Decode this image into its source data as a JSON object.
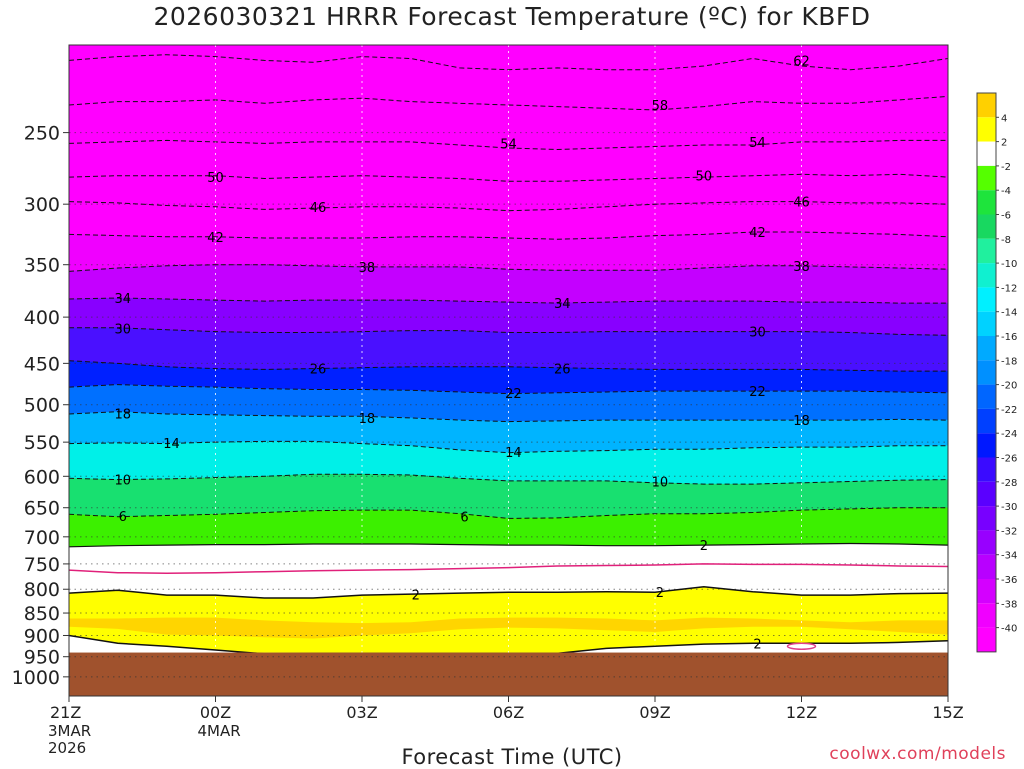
{
  "title": "2026030321 HRRR Forecast Temperature (ºC) for KBFD",
  "credit": "coolwx.com/models",
  "chart_data": {
    "type": "heatmap",
    "title": "2026030321 HRRR Forecast Temperature (ºC) for KBFD",
    "xlabel": "Forecast Time (UTC)",
    "ylabel": "",
    "units": "ºC",
    "x_ticks": [
      {
        "hour": 0,
        "label": "21Z",
        "sub": [
          "3MAR",
          "2026"
        ]
      },
      {
        "hour": 3,
        "label": "00Z",
        "sub": [
          "4MAR"
        ]
      },
      {
        "hour": 6,
        "label": "03Z",
        "sub": []
      },
      {
        "hour": 9,
        "label": "06Z",
        "sub": []
      },
      {
        "hour": 12,
        "label": "09Z",
        "sub": []
      },
      {
        "hour": 15,
        "label": "12Z",
        "sub": []
      },
      {
        "hour": 18,
        "label": "15Z",
        "sub": []
      }
    ],
    "xlim": [
      0,
      18
    ],
    "y_axis": "pressure (hPa), log scale, inverted",
    "ylim": [
      1050,
      200
    ],
    "y_ticks": [
      250,
      300,
      350,
      400,
      450,
      500,
      550,
      600,
      650,
      700,
      750,
      800,
      850,
      900,
      950,
      1000
    ],
    "surface_pressure": 940,
    "surface_color": "#a0522d",
    "colorbar": {
      "levels": [
        4,
        2,
        -2,
        -4,
        -6,
        -8,
        -10,
        -12,
        -14,
        -16,
        -18,
        -20,
        -22,
        -24,
        -26,
        -28,
        -30,
        -32,
        -34,
        -36,
        -38,
        -40
      ],
      "colors": [
        "#ffd000",
        "#ffff00",
        "#ffffff",
        "#55ff00",
        "#1ee43c",
        "#18d860",
        "#20f09e",
        "#10f0d0",
        "#00f0ff",
        "#00d2ff",
        "#00aaff",
        "#0090ff",
        "#0066ff",
        "#0040ff",
        "#0018ff",
        "#3a0bff",
        "#5a00ff",
        "#7800ff",
        "#9800ff",
        "#b800ff",
        "#d400ff",
        "#f000ff",
        "#ff00ff"
      ]
    },
    "contours": [
      {
        "value": "62",
        "p": [
          208,
          206,
          205,
          206,
          208,
          209,
          206,
          207,
          212,
          213,
          212,
          213,
          213,
          211,
          207,
          211,
          213,
          211,
          207
        ]
      },
      {
        "value": "58",
        "p": [
          233,
          231,
          231,
          230,
          232,
          230,
          229,
          231,
          232,
          233,
          234,
          235,
          236,
          234,
          231,
          232,
          232,
          230,
          228
        ]
      },
      {
        "value": "54",
        "p": [
          257,
          256,
          255,
          256,
          257,
          256,
          256,
          256,
          258,
          260,
          261,
          260,
          259,
          258,
          258,
          256,
          256,
          255,
          255
        ]
      },
      {
        "value": "50",
        "p": [
          280,
          279,
          279,
          279,
          281,
          280,
          279,
          280,
          281,
          283,
          283,
          282,
          281,
          280,
          279,
          278,
          279,
          278,
          280
        ]
      },
      {
        "value": "46",
        "p": [
          298,
          299,
          301,
          302,
          304,
          303,
          302,
          302,
          303,
          305,
          304,
          302,
          300,
          299,
          298,
          298,
          299,
          299,
          300
        ]
      },
      {
        "value": "42",
        "p": [
          324,
          325,
          326,
          326,
          327,
          327,
          327,
          326,
          326,
          327,
          328,
          327,
          325,
          324,
          322,
          322,
          323,
          324,
          326
        ]
      },
      {
        "value": "38",
        "p": [
          356,
          353,
          351,
          350,
          350,
          351,
          352,
          352,
          352,
          354,
          355,
          355,
          355,
          353,
          351,
          351,
          352,
          353,
          354
        ]
      },
      {
        "value": "34",
        "p": [
          382,
          381,
          382,
          383,
          384,
          383,
          383,
          383,
          384,
          385,
          386,
          385,
          384,
          384,
          384,
          385,
          385,
          386,
          386
        ]
      },
      {
        "value": "30",
        "p": [
          411,
          411,
          413,
          415,
          416,
          416,
          415,
          414,
          414,
          416,
          416,
          415,
          415,
          415,
          415,
          415,
          416,
          418,
          419
        ]
      },
      {
        "value": "26",
        "p": [
          447,
          450,
          454,
          456,
          457,
          456,
          455,
          454,
          454,
          454,
          455,
          456,
          457,
          457,
          457,
          457,
          458,
          459,
          459
        ]
      },
      {
        "value": "22",
        "p": [
          478,
          475,
          477,
          478,
          480,
          481,
          481,
          482,
          484,
          486,
          485,
          484,
          483,
          483,
          483,
          483,
          483,
          484,
          485
        ]
      },
      {
        "value": "18",
        "p": [
          512,
          509,
          512,
          513,
          514,
          515,
          515,
          517,
          520,
          522,
          521,
          520,
          520,
          520,
          520,
          520,
          520,
          519,
          520
        ]
      },
      {
        "value": "14",
        "p": [
          552,
          551,
          552,
          550,
          549,
          549,
          552,
          555,
          561,
          565,
          563,
          562,
          560,
          560,
          558,
          557,
          557,
          555,
          555
        ]
      },
      {
        "value": "10",
        "p": [
          603,
          605,
          604,
          602,
          600,
          597,
          597,
          598,
          603,
          607,
          607,
          607,
          610,
          612,
          612,
          610,
          608,
          606,
          605
        ]
      },
      {
        "value": "6",
        "p": [
          661,
          665,
          663,
          661,
          658,
          655,
          654,
          654,
          660,
          668,
          667,
          663,
          660,
          660,
          658,
          654,
          652,
          650,
          650
        ]
      }
    ],
    "freezing_lines": [
      {
        "value": "2",
        "p": [
          718,
          716,
          715,
          714,
          714,
          713,
          713,
          713,
          714,
          715,
          715,
          716,
          716,
          715,
          714,
          713,
          712,
          713,
          715
        ]
      },
      {
        "value": "-2",
        "p": [
          808,
          802,
          812,
          812,
          818,
          818,
          812,
          810,
          808,
          806,
          806,
          805,
          806,
          795,
          805,
          812,
          812,
          809,
          808
        ]
      },
      {
        "value": "0",
        "p": [
          762,
          767,
          768,
          767,
          765,
          763,
          762,
          761,
          759,
          757,
          754,
          753,
          752,
          750,
          751,
          751,
          752,
          754,
          755
        ]
      }
    ],
    "near_surface_contour": {
      "value": "2",
      "p": [
        900,
        918,
        925,
        934,
        943,
        942,
        942,
        942,
        942,
        942,
        942,
        930,
        925,
        920,
        918,
        918,
        918,
        916,
        912
      ]
    },
    "bands": [
      {
        "color": "#ffd000",
        "from": [
          862,
          862,
          860,
          860,
          866,
          870,
          872,
          870,
          862,
          860,
          860,
          862,
          866,
          860,
          862,
          866,
          870,
          866,
          866
        ],
        "to": [
          880,
          885,
          898,
          900,
          904,
          907,
          900,
          895,
          886,
          882,
          884,
          888,
          892,
          884,
          880,
          880,
          886,
          892,
          898
        ]
      }
    ],
    "contour_labels": [
      {
        "hour": 15.0,
        "p": 208,
        "text": "62"
      },
      {
        "hour": 12.1,
        "p": 233,
        "text": "58"
      },
      {
        "hour": 9.0,
        "p": 257,
        "text": "54"
      },
      {
        "hour": 14.1,
        "p": 256,
        "text": "54"
      },
      {
        "hour": 3.0,
        "p": 280,
        "text": "50"
      },
      {
        "hour": 13.0,
        "p": 279,
        "text": "50"
      },
      {
        "hour": 5.1,
        "p": 302,
        "text": "46"
      },
      {
        "hour": 15.0,
        "p": 298,
        "text": "46"
      },
      {
        "hour": 3.0,
        "p": 326,
        "text": "42"
      },
      {
        "hour": 14.1,
        "p": 322,
        "text": "42"
      },
      {
        "hour": 6.1,
        "p": 352,
        "text": "38"
      },
      {
        "hour": 15.0,
        "p": 351,
        "text": "38"
      },
      {
        "hour": 1.1,
        "p": 381,
        "text": "34"
      },
      {
        "hour": 10.1,
        "p": 386,
        "text": "34"
      },
      {
        "hour": 1.1,
        "p": 412,
        "text": "30"
      },
      {
        "hour": 14.1,
        "p": 415,
        "text": "30"
      },
      {
        "hour": 5.1,
        "p": 456,
        "text": "26"
      },
      {
        "hour": 10.1,
        "p": 456,
        "text": "26"
      },
      {
        "hour": 9.1,
        "p": 485,
        "text": "22"
      },
      {
        "hour": 14.1,
        "p": 483,
        "text": "22"
      },
      {
        "hour": 1.1,
        "p": 511,
        "text": "18"
      },
      {
        "hour": 6.1,
        "p": 517,
        "text": "18"
      },
      {
        "hour": 15.0,
        "p": 520,
        "text": "18"
      },
      {
        "hour": 2.1,
        "p": 551,
        "text": "14"
      },
      {
        "hour": 9.1,
        "p": 564,
        "text": "14"
      },
      {
        "hour": 1.1,
        "p": 605,
        "text": "10"
      },
      {
        "hour": 12.1,
        "p": 608,
        "text": "10"
      },
      {
        "hour": 1.1,
        "p": 664,
        "text": "6"
      },
      {
        "hour": 8.1,
        "p": 665,
        "text": "6"
      },
      {
        "hour": 13.0,
        "p": 715,
        "text": "2"
      },
      {
        "hour": 7.1,
        "p": 811,
        "text": "2"
      },
      {
        "hour": 12.1,
        "p": 806,
        "text": "2"
      },
      {
        "hour": 14.1,
        "p": 918,
        "text": "2"
      }
    ],
    "small_loop": {
      "hour": 15.0,
      "p": 925,
      "color": "#e0408a"
    }
  }
}
